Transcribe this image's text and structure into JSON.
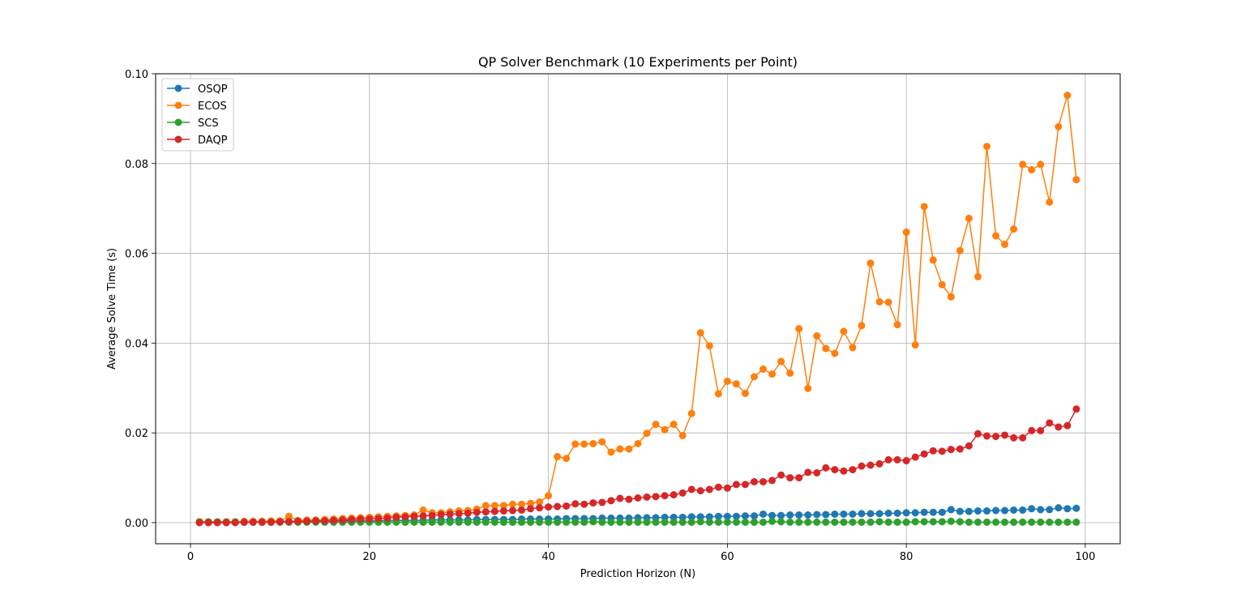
{
  "chart_data": {
    "type": "line",
    "title": "QP Solver Benchmark (10 Experiments per Point)",
    "xlabel": "Prediction Horizon (N)",
    "ylabel": "Average Solve Time (s)",
    "xlim": [
      -3.9,
      103.9
    ],
    "ylim": [
      -0.0047,
      0.1
    ],
    "xticks": [
      0,
      20,
      40,
      60,
      80,
      100
    ],
    "xtick_labels": [
      "0",
      "20",
      "40",
      "60",
      "80",
      "100"
    ],
    "yticks": [
      0.0,
      0.02,
      0.04,
      0.06,
      0.08,
      0.1
    ],
    "ytick_labels": [
      "0.00",
      "0.02",
      "0.04",
      "0.06",
      "0.08",
      "0.10"
    ],
    "grid": true,
    "legend_position": "upper-left",
    "marker": "circle",
    "x": [
      1,
      2,
      3,
      4,
      5,
      6,
      7,
      8,
      9,
      10,
      11,
      12,
      13,
      14,
      15,
      16,
      17,
      18,
      19,
      20,
      21,
      22,
      23,
      24,
      25,
      26,
      27,
      28,
      29,
      30,
      31,
      32,
      33,
      34,
      35,
      36,
      37,
      38,
      39,
      40,
      41,
      42,
      43,
      44,
      45,
      46,
      47,
      48,
      49,
      50,
      51,
      52,
      53,
      54,
      55,
      56,
      57,
      58,
      59,
      60,
      61,
      62,
      63,
      64,
      65,
      66,
      67,
      68,
      69,
      70,
      71,
      72,
      73,
      74,
      75,
      76,
      77,
      78,
      79,
      80,
      81,
      82,
      83,
      84,
      85,
      86,
      87,
      88,
      89,
      90,
      91,
      92,
      93,
      94,
      95,
      96,
      97,
      98,
      99
    ],
    "series": [
      {
        "name": "OSQP",
        "color": "#1f77b4",
        "values": [
          0.0002,
          0.0002,
          0.0002,
          0.0002,
          0.0002,
          0.0002,
          0.0002,
          0.0002,
          0.0002,
          0.0003,
          0.0003,
          0.0003,
          0.0003,
          0.0003,
          0.0003,
          0.0004,
          0.0004,
          0.0004,
          0.0004,
          0.0004,
          0.0004,
          0.0005,
          0.0005,
          0.0005,
          0.0005,
          0.0005,
          0.0006,
          0.0006,
          0.0006,
          0.0006,
          0.0006,
          0.0007,
          0.0007,
          0.0007,
          0.0007,
          0.0007,
          0.0008,
          0.0008,
          0.0008,
          0.0008,
          0.0008,
          0.0009,
          0.0009,
          0.0009,
          0.0009,
          0.001,
          0.001,
          0.001,
          0.001,
          0.0011,
          0.0011,
          0.0011,
          0.0012,
          0.0012,
          0.0012,
          0.0013,
          0.0013,
          0.0013,
          0.0014,
          0.0014,
          0.0014,
          0.0015,
          0.0015,
          0.0019,
          0.0016,
          0.0016,
          0.0017,
          0.0017,
          0.0017,
          0.0018,
          0.0018,
          0.0019,
          0.0019,
          0.0019,
          0.002,
          0.002,
          0.002,
          0.0021,
          0.0021,
          0.0022,
          0.0022,
          0.0023,
          0.0023,
          0.0023,
          0.0029,
          0.0025,
          0.0025,
          0.0026,
          0.0026,
          0.0027,
          0.0027,
          0.0028,
          0.0028,
          0.0031,
          0.0029,
          0.0029,
          0.0033,
          0.0031,
          0.0032
        ]
      },
      {
        "name": "ECOS",
        "color": "#ff7f0e",
        "values": [
          0.0002,
          0.0002,
          0.0002,
          0.0002,
          0.0002,
          0.0003,
          0.0003,
          0.0003,
          0.0004,
          0.0004,
          0.0014,
          0.0005,
          0.0006,
          0.0006,
          0.0007,
          0.0008,
          0.0009,
          0.001,
          0.0011,
          0.0012,
          0.0013,
          0.0014,
          0.0015,
          0.0016,
          0.0017,
          0.0028,
          0.0022,
          0.0022,
          0.0024,
          0.0026,
          0.0027,
          0.003,
          0.0038,
          0.0038,
          0.0038,
          0.0041,
          0.0041,
          0.0043,
          0.0046,
          0.006,
          0.0147,
          0.0143,
          0.0175,
          0.0175,
          0.0176,
          0.018,
          0.0157,
          0.0164,
          0.0164,
          0.0176,
          0.0199,
          0.0219,
          0.0207,
          0.0219,
          0.0194,
          0.0243,
          0.0423,
          0.0394,
          0.0287,
          0.0315,
          0.0309,
          0.0288,
          0.0325,
          0.0342,
          0.0331,
          0.0359,
          0.0333,
          0.0432,
          0.0299,
          0.0416,
          0.0388,
          0.0377,
          0.0426,
          0.039,
          0.0439,
          0.0578,
          0.0492,
          0.0491,
          0.0441,
          0.0647,
          0.0396,
          0.0704,
          0.0585,
          0.053,
          0.0503,
          0.0606,
          0.0678,
          0.0548,
          0.0838,
          0.0639,
          0.062,
          0.0654,
          0.0798,
          0.0786,
          0.0798,
          0.0714,
          0.0882,
          0.0952,
          0.0764
        ]
      },
      {
        "name": "SCS",
        "color": "#2ca02c",
        "values": [
          0.0001,
          0.0001,
          0.0001,
          0.0001,
          0.0001,
          0.0001,
          0.0001,
          0.0001,
          0.0001,
          0.0001,
          0.0001,
          0.0001,
          0.0001,
          0.0001,
          0.0001,
          0.0001,
          0.0001,
          0.0001,
          0.0001,
          0.0001,
          0.0001,
          0.0001,
          0.0001,
          0.0001,
          0.0001,
          0.0001,
          0.0001,
          0.0001,
          0.0001,
          0.0001,
          0.0001,
          0.0001,
          0.0001,
          0.0001,
          0.0001,
          0.0001,
          0.0001,
          0.0001,
          0.0001,
          0.0001,
          0.0001,
          0.0001,
          0.0001,
          0.0001,
          0.0002,
          0.0001,
          0.0001,
          0.0001,
          0.0001,
          0.0001,
          0.0001,
          0.0001,
          0.0001,
          0.0001,
          0.0001,
          0.0001,
          0.0002,
          0.0001,
          0.0001,
          0.0001,
          0.0001,
          0.0001,
          0.0001,
          0.0001,
          0.0003,
          0.0002,
          0.0001,
          0.0001,
          0.0001,
          0.0001,
          0.0001,
          0.0001,
          0.0001,
          0.0001,
          0.0001,
          0.0001,
          0.0002,
          0.0001,
          0.0001,
          0.0001,
          0.0002,
          0.0002,
          0.0002,
          0.0002,
          0.0003,
          0.0002,
          0.0001,
          0.0001,
          0.0001,
          0.0001,
          0.0001,
          0.0001,
          0.0001,
          0.0001,
          0.0001,
          0.0001,
          0.0001,
          0.0001,
          0.0001
        ]
      },
      {
        "name": "DAQP",
        "color": "#d62728",
        "values": [
          0.0,
          0.0,
          0.0,
          0.0,
          0.0,
          0.0001,
          0.0001,
          0.0001,
          0.0001,
          0.0002,
          0.0002,
          0.0003,
          0.0003,
          0.0004,
          0.0004,
          0.0005,
          0.0006,
          0.0007,
          0.0008,
          0.0008,
          0.0009,
          0.001,
          0.0012,
          0.0013,
          0.0014,
          0.0015,
          0.0016,
          0.0018,
          0.0019,
          0.002,
          0.0021,
          0.0023,
          0.0024,
          0.0025,
          0.0026,
          0.0027,
          0.0028,
          0.0031,
          0.0033,
          0.0035,
          0.0036,
          0.0037,
          0.0042,
          0.0041,
          0.0044,
          0.0045,
          0.0049,
          0.0054,
          0.0052,
          0.0055,
          0.0057,
          0.0058,
          0.006,
          0.0062,
          0.0066,
          0.0074,
          0.0071,
          0.0074,
          0.0079,
          0.0077,
          0.0085,
          0.0085,
          0.0091,
          0.0091,
          0.0094,
          0.0106,
          0.01,
          0.01,
          0.0112,
          0.0111,
          0.0122,
          0.0118,
          0.0115,
          0.0118,
          0.0126,
          0.0128,
          0.0131,
          0.014,
          0.014,
          0.0138,
          0.0146,
          0.0153,
          0.016,
          0.0159,
          0.0163,
          0.0164,
          0.0171,
          0.0198,
          0.0193,
          0.0192,
          0.0195,
          0.0189,
          0.0189,
          0.0205,
          0.0205,
          0.0222,
          0.0213,
          0.0216,
          0.0253
        ]
      }
    ]
  }
}
